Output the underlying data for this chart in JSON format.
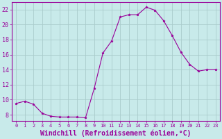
{
  "x": [
    0,
    1,
    2,
    3,
    4,
    5,
    6,
    7,
    8,
    9,
    10,
    11,
    12,
    13,
    14,
    15,
    16,
    17,
    18,
    19,
    20,
    21,
    22,
    23
  ],
  "y": [
    9.5,
    9.8,
    9.4,
    8.2,
    7.8,
    7.7,
    7.7,
    7.7,
    7.6,
    11.5,
    16.2,
    17.8,
    21.0,
    21.3,
    21.3,
    22.3,
    21.9,
    20.5,
    18.5,
    16.3,
    14.7,
    13.8,
    14.0,
    14.0
  ],
  "line_color": "#990099",
  "marker": "*",
  "marker_size": 2.5,
  "bg_color": "#c8eaea",
  "grid_color": "#aacccc",
  "xlabel": "Windchill (Refroidissement éolien,°C)",
  "xlabel_fontsize": 7,
  "ylim": [
    7.2,
    23.0
  ],
  "xlim": [
    -0.5,
    23.5
  ],
  "yticks": [
    8,
    10,
    12,
    14,
    16,
    18,
    20,
    22
  ],
  "xtick_fontsize": 5,
  "ytick_fontsize": 6
}
